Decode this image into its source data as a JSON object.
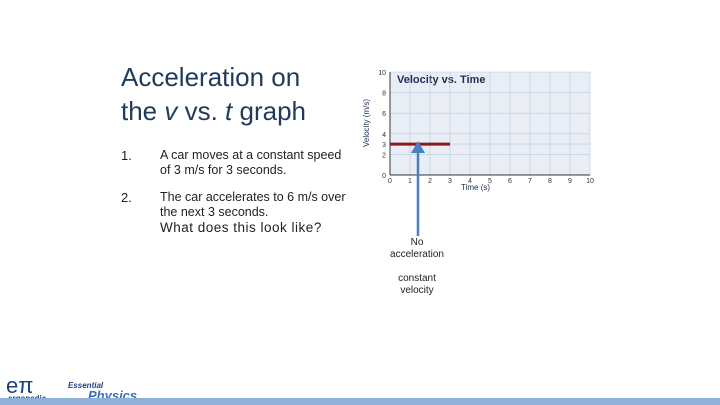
{
  "slide": {
    "title": {
      "line1": "Acceleration on",
      "line2_parts": [
        "the ",
        "v",
        " vs. ",
        "t",
        " graph"
      ]
    },
    "items": [
      {
        "number": "1.",
        "text": "A car moves at a constant speed of 3 m/s for 3 seconds."
      },
      {
        "number": "2.",
        "text": "The car accelerates to 6 m/s over the next 3 seconds."
      }
    ],
    "question": "What does this look like?",
    "annotation": {
      "line1": "No",
      "line2": "acceleration",
      "line3": "constant",
      "line4": "velocity"
    },
    "logo": {
      "mark": "eπ",
      "brand": "ergopedia",
      "series_top": "Essential",
      "series_bottom": "Physics"
    }
  },
  "chart_data": {
    "type": "line",
    "title": "Velocity vs. Time",
    "xlabel": "Time (s)",
    "ylabel": "Velocity (m/s)",
    "xlim": [
      0,
      10
    ],
    "ylim": [
      0,
      10
    ],
    "xticks": [
      0,
      1,
      2,
      3,
      4,
      5,
      6,
      7,
      8,
      9,
      10
    ],
    "yticks": [
      0,
      2,
      3,
      4,
      6,
      8,
      10
    ],
    "grid": true,
    "series": [
      {
        "name": "Constant velocity",
        "color": "#8b1a1a",
        "x": [
          0,
          3
        ],
        "values": [
          3,
          3
        ]
      }
    ]
  }
}
